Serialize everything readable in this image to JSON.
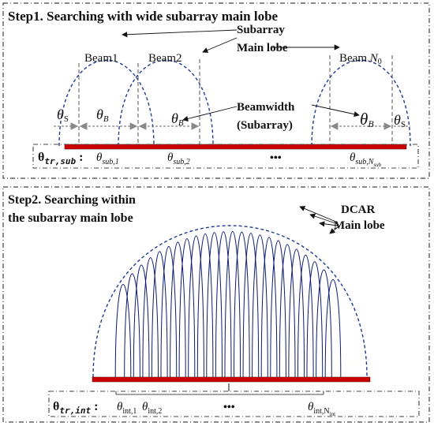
{
  "step1": {
    "title": "Step1. Searching with  wide subarray main lobe",
    "callout_subarray_main_lobe": [
      "Subarray",
      "Main lobe"
    ],
    "beam_labels": [
      "Beam1",
      "Beam2",
      "Beam N0"
    ],
    "theta_S": "θS",
    "theta_B": "θB",
    "callout_beamwidth": [
      "Beamwidth",
      "(Subarray)"
    ],
    "row_label": "θtr,sub :",
    "row_values": [
      "θsub,1",
      "θsub,2",
      "θsub,Nsub"
    ],
    "ellipsis": "•••"
  },
  "step2": {
    "title_lines": [
      "Step2. Searching within",
      "the subarray main lobe"
    ],
    "callout_dcar": [
      "DCAR",
      "Main lobe"
    ],
    "lobe_count": 24,
    "row_label": "θtr,int :",
    "row_values": [
      "θint,1",
      "θint,2",
      "θint,Nint"
    ],
    "ellipsis": "•••"
  },
  "colors": {
    "beam_dashed": "#1f3a93",
    "lobe_line": "#0d1b6e",
    "array_bar": "#cc0000",
    "frame": "#444444",
    "text": "#111111"
  }
}
